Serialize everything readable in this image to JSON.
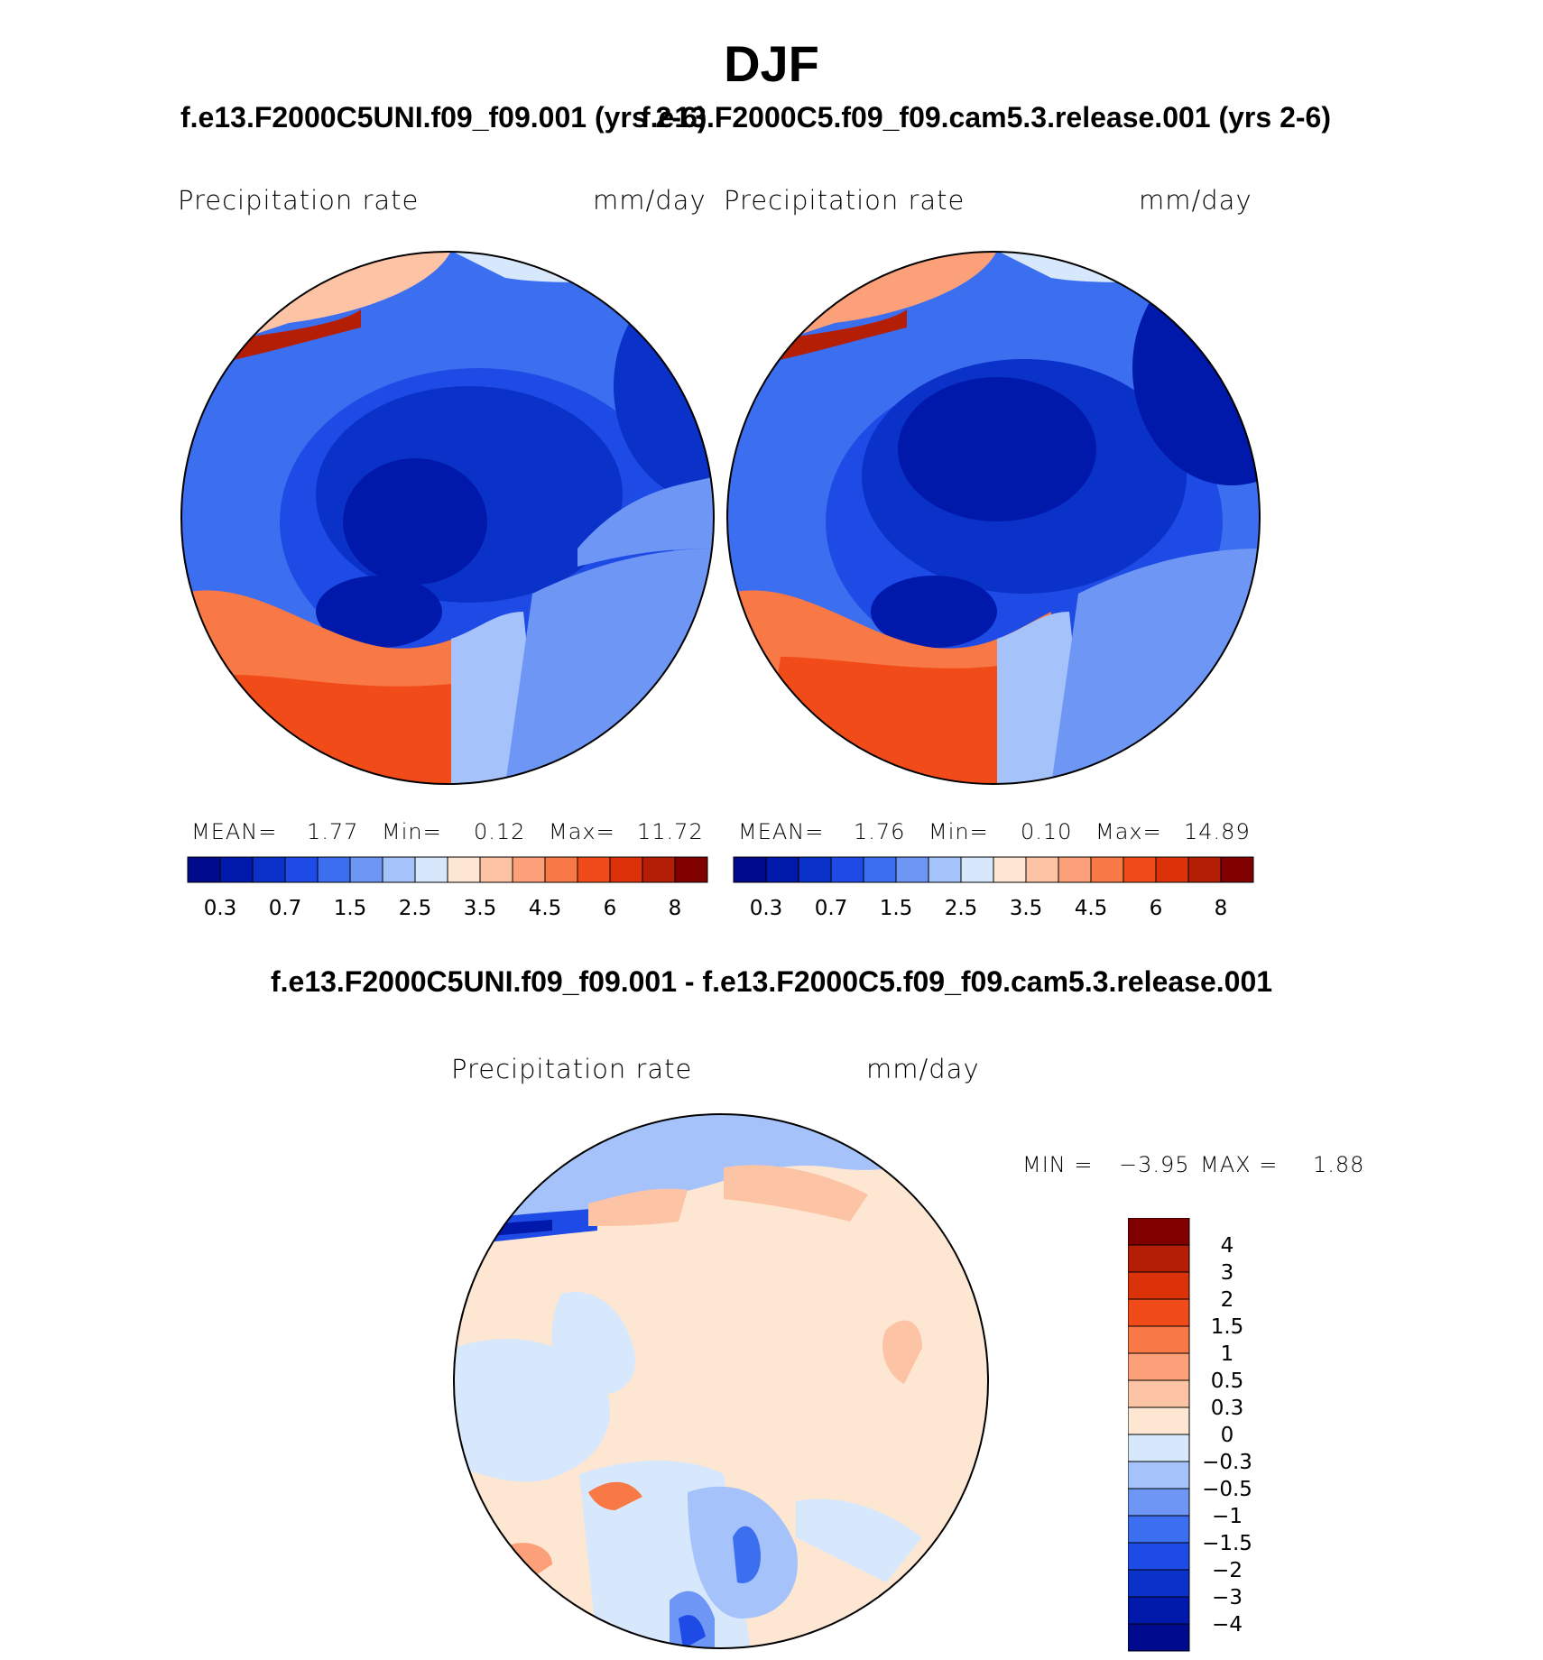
{
  "figure": {
    "season": "DJF",
    "case1_title": "f.e13.F2000C5UNI.f09_f09.001 (yrs 2-6)",
    "case2_title": "f.e13.F2000C5.f09_f09.cam5.3.release.001 (yrs 2-6)",
    "diff_title": "f.e13.F2000C5UNI.f09_f09.001 - f.e13.F2000C5.f09_f09.cam5.3.release.001"
  },
  "panels": {
    "left": {
      "variable": "Precipitation  rate",
      "units": "mm/day",
      "mean_label": "MEAN=",
      "mean": "1.77",
      "min_label": "Min=",
      "min": "0.12",
      "max_label": "Max=",
      "max": "11.72"
    },
    "right": {
      "variable": "Precipitation  rate",
      "units": "mm/day",
      "mean_label": "MEAN=",
      "mean": "1.76",
      "min_label": "Min=",
      "min": "0.10",
      "max_label": "Max=",
      "max": "14.89"
    },
    "diff": {
      "variable": "Precipitation  rate",
      "units": "mm/day",
      "min_label": "MIN =",
      "min": "−3.95",
      "max_label": "MAX =",
      "max": "1.88"
    }
  },
  "chart_data": [
    {
      "type": "heatmap",
      "projection": "north polar stereographic",
      "title": "f.e13.F2000C5UNI.f09_f09.001 (yrs 2-6)",
      "variable": "Precipitation  rate",
      "units": "mm/day",
      "stats": {
        "mean": 1.77,
        "min": 0.12,
        "max": 11.72
      },
      "colorbar": {
        "orientation": "horizontal",
        "levels": [
          0.2,
          0.3,
          0.5,
          0.7,
          1,
          1.5,
          2,
          2.5,
          3,
          3.5,
          4,
          4.5,
          5,
          6,
          7,
          8
        ],
        "tick_labels": [
          "0.3",
          "0.7",
          "1.5",
          "2.5",
          "3.5",
          "4.5",
          "6",
          "8"
        ],
        "colors": [
          "#000a8c",
          "#0019aa",
          "#0a32c8",
          "#1e4be6",
          "#3c6ef0",
          "#6e96f5",
          "#a5c3fa",
          "#d7e8fd",
          "#fde6d2",
          "#fcc3a5",
          "#fba078",
          "#f87846",
          "#f04b19",
          "#dc320a",
          "#b41e05",
          "#800000"
        ]
      }
    },
    {
      "type": "heatmap",
      "projection": "north polar stereographic",
      "title": "f.e13.F2000C5.f09_f09.cam5.3.release.001 (yrs 2-6)",
      "variable": "Precipitation  rate",
      "units": "mm/day",
      "stats": {
        "mean": 1.76,
        "min": 0.1,
        "max": 14.89
      },
      "colorbar": {
        "orientation": "horizontal",
        "levels": [
          0.2,
          0.3,
          0.5,
          0.7,
          1,
          1.5,
          2,
          2.5,
          3,
          3.5,
          4,
          4.5,
          5,
          6,
          7,
          8
        ],
        "tick_labels": [
          "0.3",
          "0.7",
          "1.5",
          "2.5",
          "3.5",
          "4.5",
          "6",
          "8"
        ],
        "colors": [
          "#000a8c",
          "#0019aa",
          "#0a32c8",
          "#1e4be6",
          "#3c6ef0",
          "#6e96f5",
          "#a5c3fa",
          "#d7e8fd",
          "#fde6d2",
          "#fcc3a5",
          "#fba078",
          "#f87846",
          "#f04b19",
          "#dc320a",
          "#b41e05",
          "#800000"
        ]
      }
    },
    {
      "type": "heatmap",
      "projection": "north polar stereographic",
      "title": "f.e13.F2000C5UNI.f09_f09.001 - f.e13.F2000C5.f09_f09.cam5.3.release.001",
      "variable": "Precipitation  rate",
      "units": "mm/day",
      "stats": {
        "min": -3.95,
        "max": 1.88
      },
      "colorbar": {
        "orientation": "vertical",
        "tick_labels": [
          "4",
          "3",
          "2",
          "1.5",
          "1",
          "0.5",
          "0.3",
          "0",
          "−0.3",
          "−0.5",
          "−1",
          "−1.5",
          "−2",
          "−3",
          "−4"
        ],
        "colors_top_to_bottom": [
          "#800000",
          "#b41e05",
          "#dc320a",
          "#f04b19",
          "#f87846",
          "#fba078",
          "#fcc3a5",
          "#fde6d2",
          "#d7e8fd",
          "#a5c3fa",
          "#6e96f5",
          "#3c6ef0",
          "#1e4be6",
          "#0a32c8",
          "#0019aa",
          "#000a8c"
        ]
      }
    }
  ]
}
